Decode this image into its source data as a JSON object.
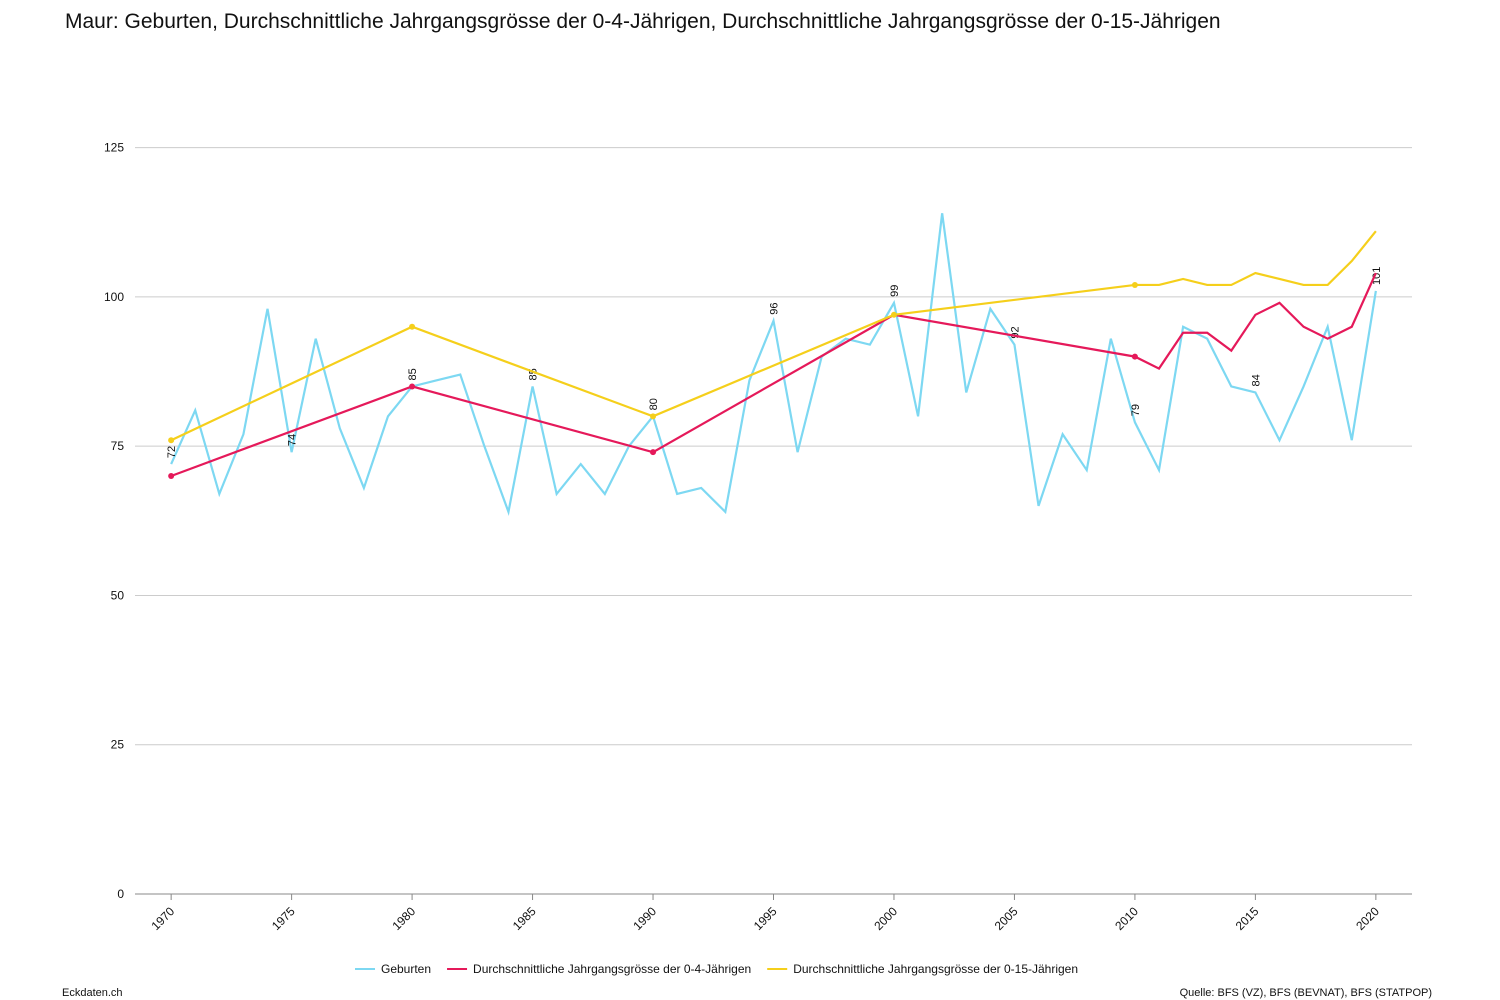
{
  "chart_data": {
    "type": "line",
    "title": "Maur: Geburten, Durchschnittliche Jahrgangsgrösse der 0-4-Jährigen, Durchschnittliche Jahrgangsgrösse der 0-15-Jährigen",
    "footer_left": "Eckdaten.ch",
    "footer_right": "Quelle: BFS (VZ), BFS (BEVNAT), BFS (STATPOP)",
    "xlim": [
      1968.5,
      2021.5
    ],
    "xticks": [
      1970,
      1975,
      1980,
      1985,
      1990,
      1995,
      2000,
      2005,
      2010,
      2015,
      2020
    ],
    "ylim": [
      0,
      138
    ],
    "yticks": [
      0,
      25,
      50,
      75,
      100,
      125
    ],
    "grid": true,
    "legend": "bottom",
    "series": [
      {
        "name": "Geburten",
        "color": "#7dd8f2",
        "label_every": 5,
        "x": [
          1970,
          1971,
          1972,
          1973,
          1974,
          1975,
          1976,
          1977,
          1978,
          1979,
          1980,
          1981,
          1982,
          1983,
          1984,
          1985,
          1986,
          1987,
          1988,
          1989,
          1990,
          1991,
          1992,
          1993,
          1994,
          1995,
          1996,
          1997,
          1998,
          1999,
          2000,
          2001,
          2002,
          2003,
          2004,
          2005,
          2006,
          2007,
          2008,
          2009,
          2010,
          2011,
          2012,
          2013,
          2014,
          2015,
          2016,
          2017,
          2018,
          2019,
          2020
        ],
        "values": [
          72,
          81,
          67,
          77,
          98,
          74,
          93,
          78,
          68,
          80,
          85,
          86,
          87,
          75,
          64,
          85,
          67,
          72,
          67,
          75,
          80,
          67,
          68,
          64,
          86,
          96,
          74,
          90,
          93,
          92,
          99,
          80,
          114,
          84,
          98,
          92,
          65,
          77,
          71,
          93,
          79,
          71,
          95,
          93,
          85,
          84,
          76,
          85,
          95,
          76,
          101
        ]
      },
      {
        "name": "Durchschnittliche Jahrgangsgrösse der 0-4-Jährigen",
        "color": "#e5195a",
        "x": [
          1970,
          1980,
          1990,
          2000,
          2010,
          2011,
          2012,
          2013,
          2014,
          2015,
          2016,
          2017,
          2018,
          2019,
          2020
        ],
        "values": [
          70,
          85,
          74,
          97,
          90,
          88,
          94,
          94,
          91,
          97,
          99,
          95,
          93,
          95,
          104
        ],
        "marker_x": [
          1970,
          1980,
          1990,
          2010
        ]
      },
      {
        "name": "Durchschnittliche Jahrgangsgrösse der 0-15-Jährigen",
        "color": "#f5cf1b",
        "x": [
          1970,
          1980,
          1990,
          2000,
          2010,
          2011,
          2012,
          2013,
          2014,
          2015,
          2016,
          2017,
          2018,
          2019,
          2020
        ],
        "values": [
          76,
          95,
          80,
          97,
          102,
          102,
          103,
          102,
          102,
          104,
          103,
          102,
          102,
          106,
          111
        ],
        "marker_x": [
          1970,
          1980,
          1990,
          2000,
          2010
        ]
      }
    ]
  }
}
